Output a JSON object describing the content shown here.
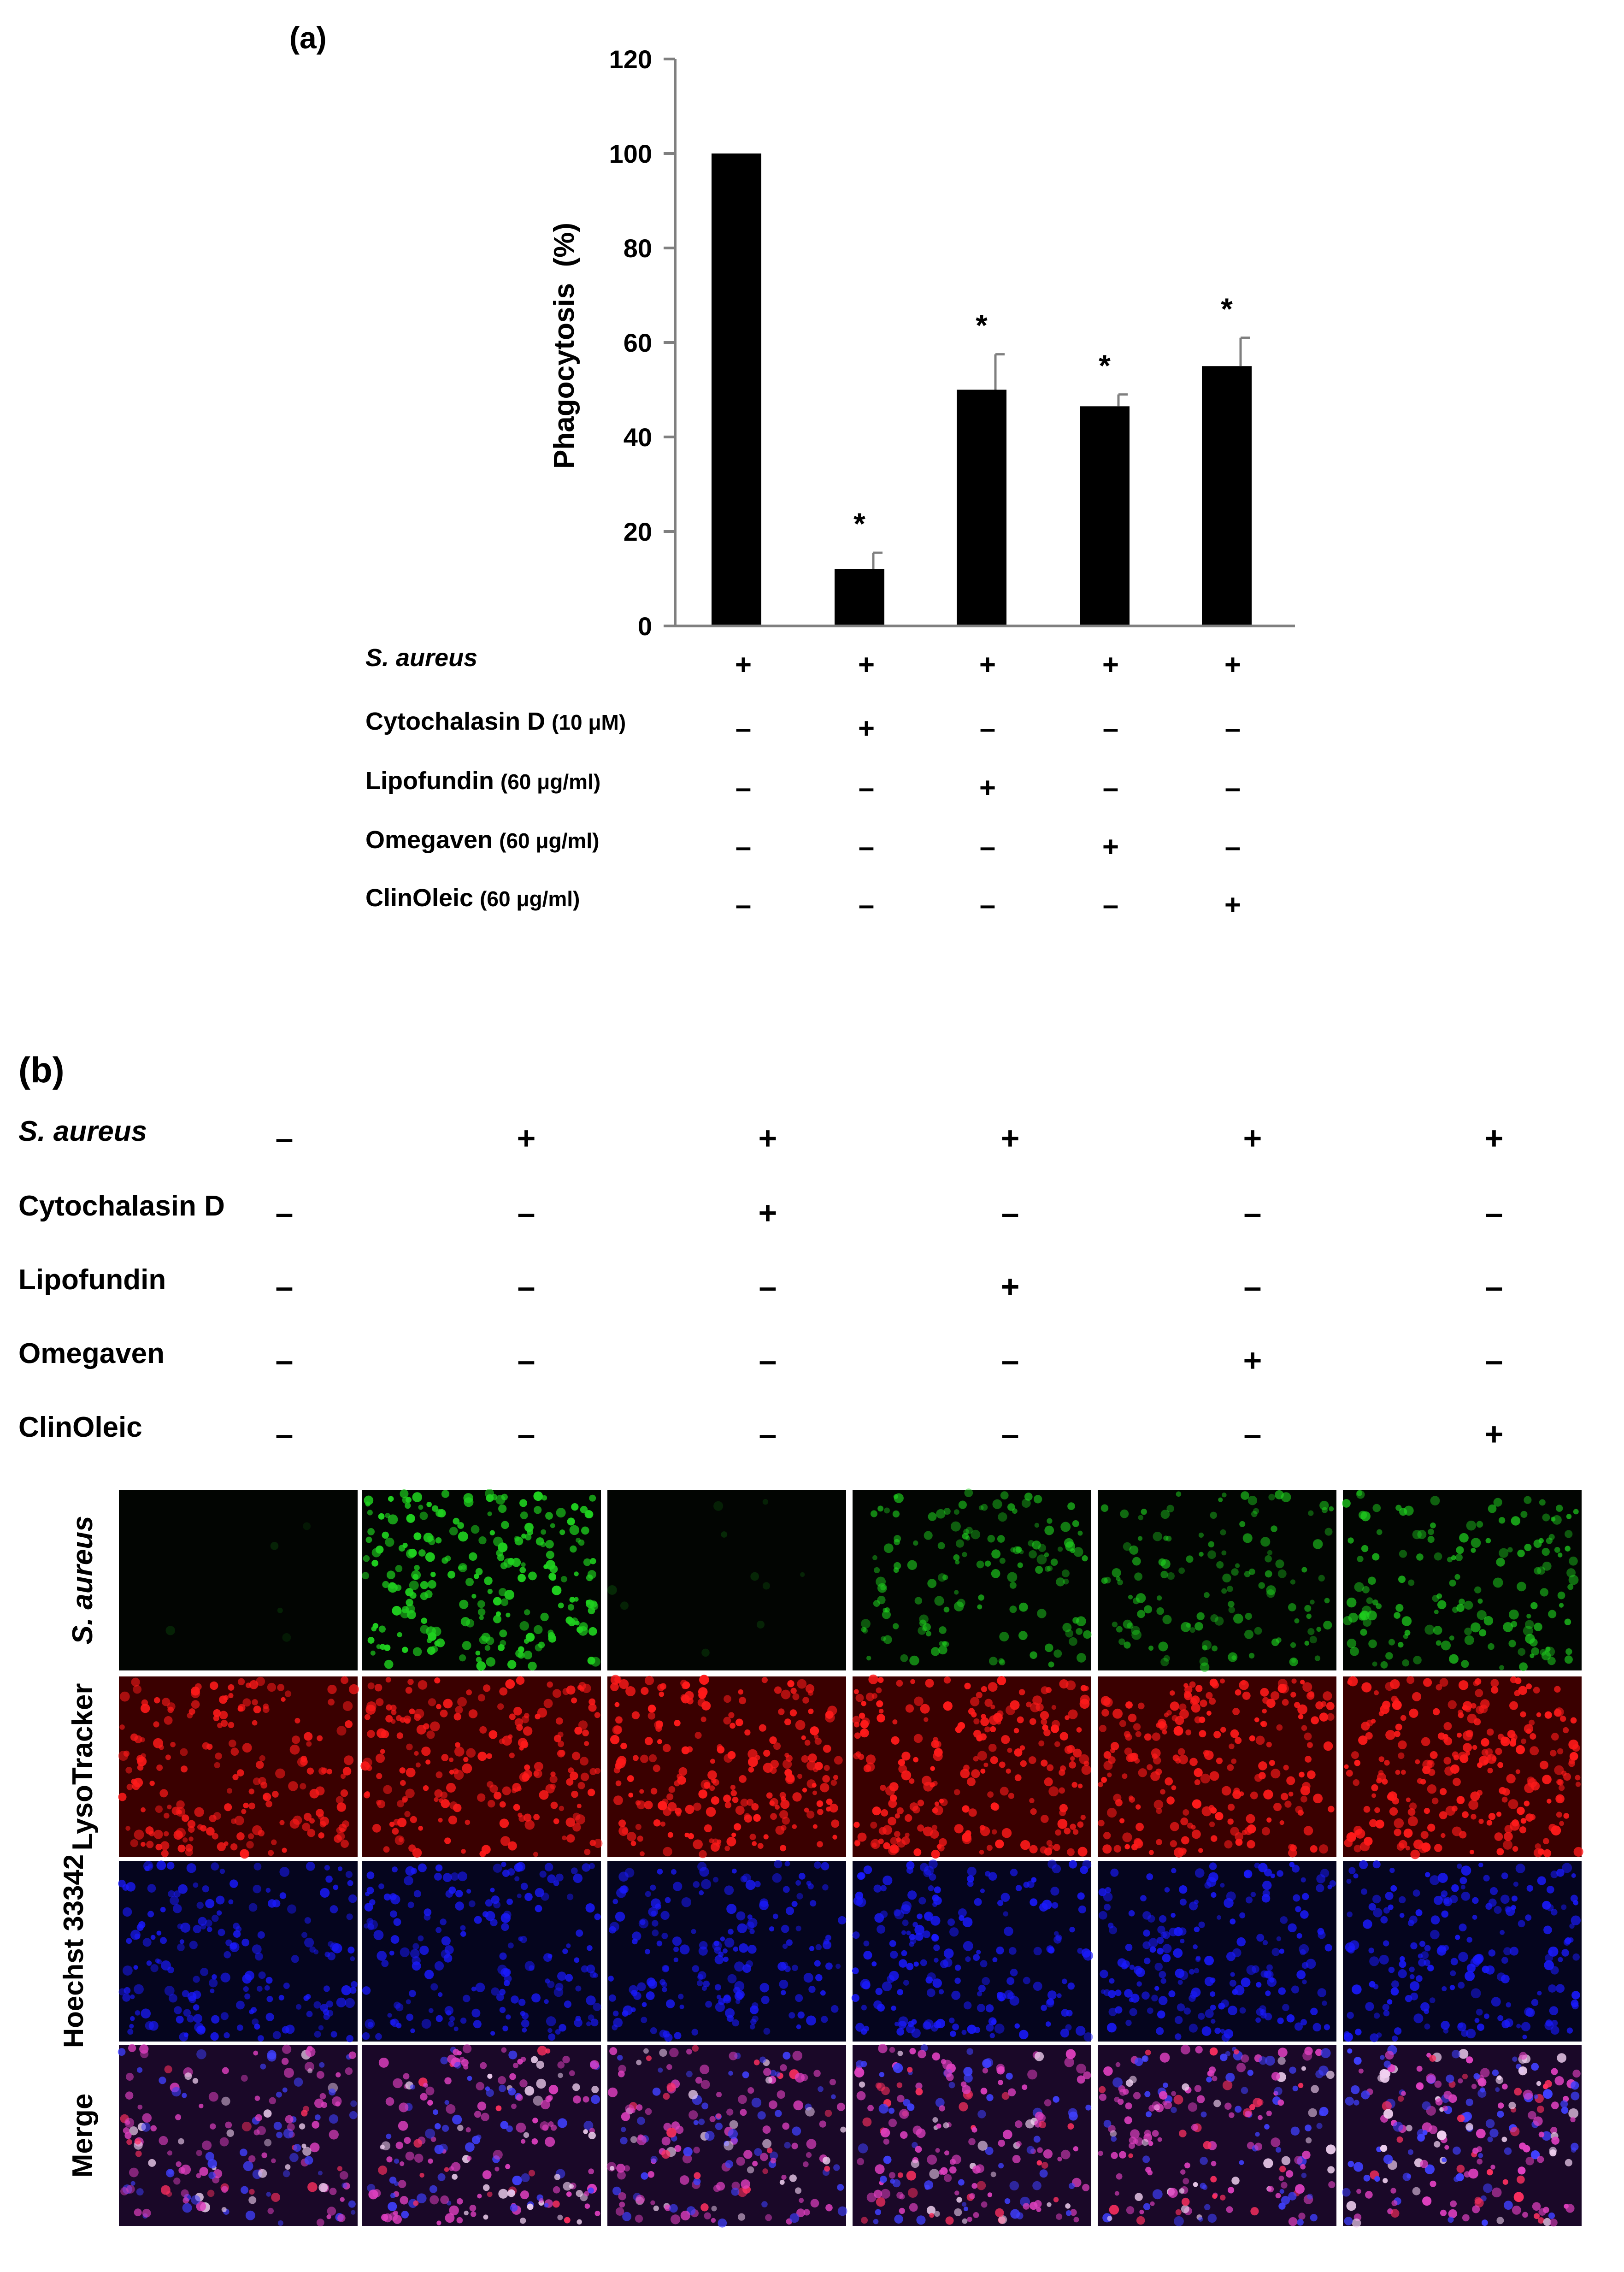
{
  "panel_a": {
    "label": "(a)",
    "condition_rows": [
      {
        "name": "S. aureus",
        "unit": "",
        "italic": true,
        "marks": [
          "+",
          "+",
          "+",
          "+",
          "+"
        ]
      },
      {
        "name": "Cytochalasin D",
        "unit": "(10 μM)",
        "italic": false,
        "marks": [
          "–",
          "+",
          "–",
          "–",
          "–"
        ]
      },
      {
        "name": "Lipofundin",
        "unit": "(60 μg/ml)",
        "italic": false,
        "marks": [
          "–",
          "–",
          "+",
          "–",
          "–"
        ]
      },
      {
        "name": "Omegaven",
        "unit": "(60 μg/ml)",
        "italic": false,
        "marks": [
          "–",
          "–",
          "–",
          "+",
          "–"
        ]
      },
      {
        "name": "ClinOleic",
        "unit": "(60 μg/ml)",
        "italic": false,
        "marks": [
          "–",
          "–",
          "–",
          "–",
          "+"
        ]
      }
    ]
  },
  "chart_data": {
    "type": "bar",
    "title": "",
    "xlabel": "",
    "ylabel": "Phagocytosis  (%)",
    "ylim": [
      0,
      120
    ],
    "yticks": [
      0,
      20,
      40,
      60,
      80,
      100,
      120
    ],
    "grid": false,
    "bar_color": "#000000",
    "values": [
      100,
      12,
      50,
      46.5,
      55
    ],
    "errors": [
      0,
      3.5,
      7.5,
      2.5,
      6
    ],
    "significance": [
      "",
      "*",
      "*",
      "*",
      "*"
    ]
  },
  "panel_b": {
    "label": "(b)",
    "condition_rows": [
      {
        "name": "S. aureus",
        "italic": true,
        "marks": [
          "–",
          "+",
          "+",
          "+",
          "+",
          "+"
        ]
      },
      {
        "name": "Cytochalasin D",
        "italic": false,
        "marks": [
          "–",
          "–",
          "+",
          "–",
          "–",
          "–"
        ]
      },
      {
        "name": "Lipofundin",
        "italic": false,
        "marks": [
          "–",
          "–",
          "–",
          "+",
          "–",
          "–"
        ]
      },
      {
        "name": "Omegaven",
        "italic": false,
        "marks": [
          "–",
          "–",
          "–",
          "–",
          "+",
          "–"
        ]
      },
      {
        "name": "ClinOleic",
        "italic": false,
        "marks": [
          "–",
          "–",
          "–",
          "–",
          "–",
          "+"
        ]
      }
    ],
    "image_rows": [
      {
        "label": "S. aureus",
        "italic": true,
        "channel": "green",
        "color": "#1fd11f",
        "intensity": [
          0.0,
          0.9,
          0.04,
          0.55,
          0.5,
          0.6
        ]
      },
      {
        "label": "LysoTracker",
        "italic": false,
        "channel": "red",
        "color": "#ff1a1a",
        "intensity": [
          0.75,
          0.8,
          0.85,
          0.9,
          0.85,
          0.95
        ]
      },
      {
        "label": "Hoechst 33342",
        "italic": false,
        "channel": "blue",
        "color": "#1a1aff",
        "intensity": [
          0.7,
          0.7,
          0.7,
          0.75,
          0.75,
          0.75
        ]
      },
      {
        "label": "Merge",
        "italic": false,
        "channel": "merge",
        "color": "#e05ae0",
        "intensity": [
          0.7,
          0.8,
          0.75,
          0.8,
          0.8,
          0.85
        ]
      }
    ]
  }
}
